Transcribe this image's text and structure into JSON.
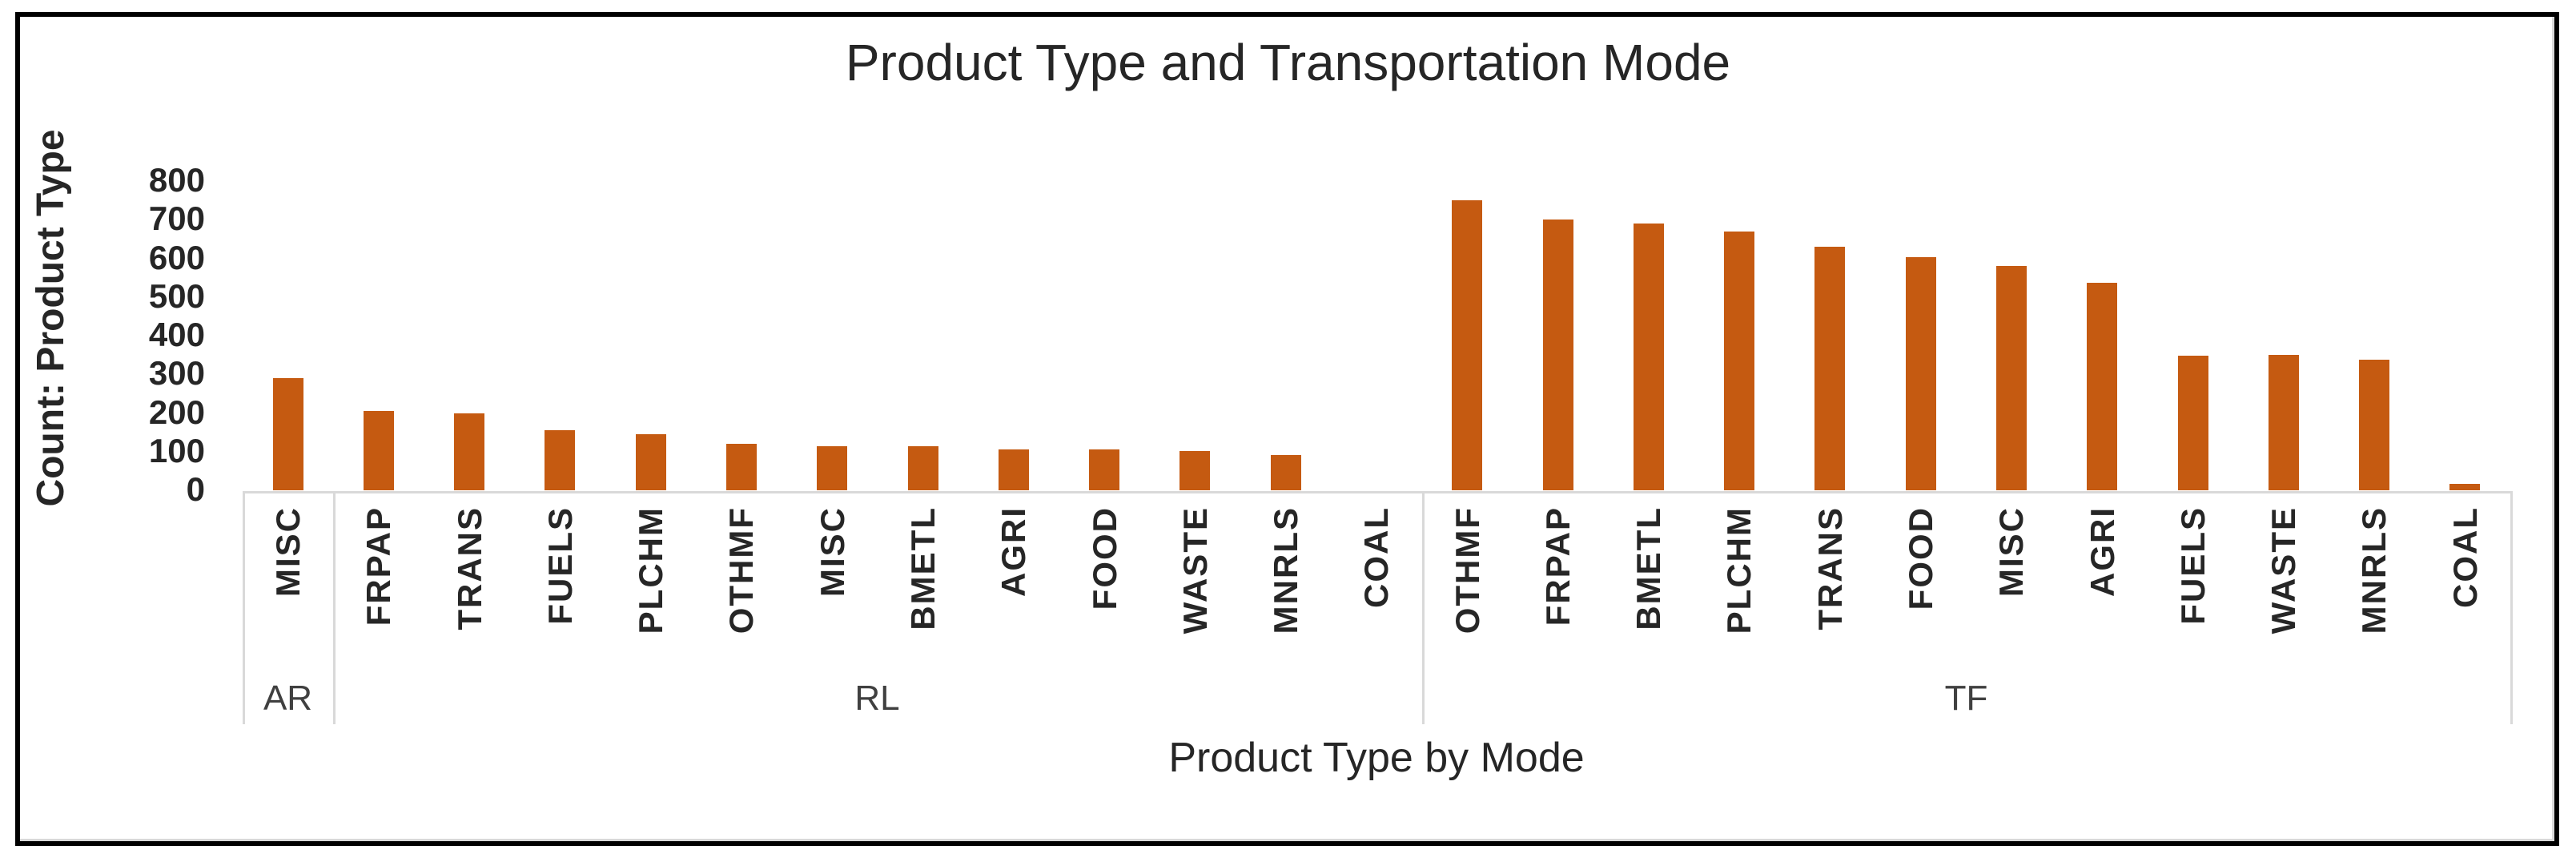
{
  "title": "Product Type and Transportation Mode",
  "y_axis": {
    "title": "Count: Product Type",
    "ticks": [
      800,
      700,
      600,
      500,
      400,
      300,
      200,
      100,
      0
    ],
    "min": 0,
    "max": 800
  },
  "x_axis": {
    "title": "Product Type by Mode",
    "group_labels": [
      "AR",
      "RL",
      "TF"
    ]
  },
  "bar_color": "#C55A11",
  "chart_data": {
    "type": "bar",
    "title": "Product Type and Transportation Mode",
    "xlabel": "Product Type by Mode",
    "ylabel": "Count: Product Type",
    "ylim": [
      0,
      800
    ],
    "ytick_interval": 100,
    "grid": false,
    "legend": "none",
    "bar_color": "#C55A11",
    "groups": [
      {
        "mode": "AR",
        "items": [
          {
            "label": "MISC",
            "value": 290
          }
        ]
      },
      {
        "mode": "RL",
        "items": [
          {
            "label": "FRPAP",
            "value": 205
          },
          {
            "label": "TRANS",
            "value": 198
          },
          {
            "label": "FUELS",
            "value": 156
          },
          {
            "label": "PLCHM",
            "value": 146
          },
          {
            "label": "OTHMF",
            "value": 120
          },
          {
            "label": "MISC",
            "value": 114
          },
          {
            "label": "BMETL",
            "value": 113
          },
          {
            "label": "AGRI",
            "value": 106
          },
          {
            "label": "FOOD",
            "value": 105
          },
          {
            "label": "WASTE",
            "value": 101
          },
          {
            "label": "MNRLS",
            "value": 91
          },
          {
            "label": "COAL",
            "value": 0
          }
        ]
      },
      {
        "mode": "TF",
        "items": [
          {
            "label": "OTHMF",
            "value": 750
          },
          {
            "label": "FRPAP",
            "value": 700
          },
          {
            "label": "BMETL",
            "value": 690
          },
          {
            "label": "PLCHM",
            "value": 670
          },
          {
            "label": "TRANS",
            "value": 630
          },
          {
            "label": "FOOD",
            "value": 603
          },
          {
            "label": "MISC",
            "value": 580
          },
          {
            "label": "AGRI",
            "value": 537
          },
          {
            "label": "FUELS",
            "value": 349
          },
          {
            "label": "WASTE",
            "value": 350
          },
          {
            "label": "MNRLS",
            "value": 337
          },
          {
            "label": "COAL",
            "value": 17
          }
        ]
      }
    ]
  }
}
